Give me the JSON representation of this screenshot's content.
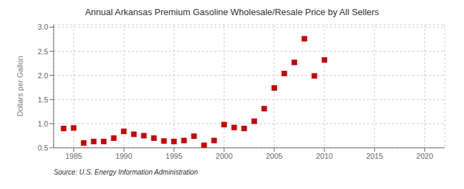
{
  "chart_data": {
    "type": "scatter",
    "title": "Annual Arkansas Premium Gasoline Wholesale/Resale Price by All Sellers",
    "ylabel": "Dollars per Gallon",
    "annotations": [
      "Source: U.S. Energy Information Administration"
    ],
    "x": [
      1984,
      1985,
      1986,
      1987,
      1988,
      1989,
      1990,
      1991,
      1992,
      1993,
      1994,
      1995,
      1996,
      1997,
      1998,
      1999,
      2000,
      2001,
      2002,
      2003,
      2004,
      2005,
      2006,
      2007,
      2008,
      2009,
      2010
    ],
    "values": [
      0.9,
      0.91,
      0.6,
      0.63,
      0.63,
      0.7,
      0.84,
      0.78,
      0.75,
      0.7,
      0.64,
      0.63,
      0.65,
      0.74,
      0.55,
      0.65,
      0.98,
      0.92,
      0.9,
      1.05,
      1.31,
      1.74,
      2.04,
      2.27,
      2.76,
      1.99,
      2.32
    ],
    "color": "#cc0000",
    "marker": "square",
    "xlim": [
      1983,
      2022
    ],
    "ylim": [
      0.5,
      3.05
    ],
    "xticks": [
      1985,
      1990,
      1995,
      2000,
      2005,
      2010,
      2015,
      2020
    ],
    "yticks": [
      0.5,
      {
        "value": 1.0,
        "label": "1.0"
      },
      1.5,
      {
        "value": 2.0,
        "label": "2.0"
      },
      2.5,
      {
        "value": 3.0,
        "label": "3.0"
      }
    ],
    "grid": true
  }
}
